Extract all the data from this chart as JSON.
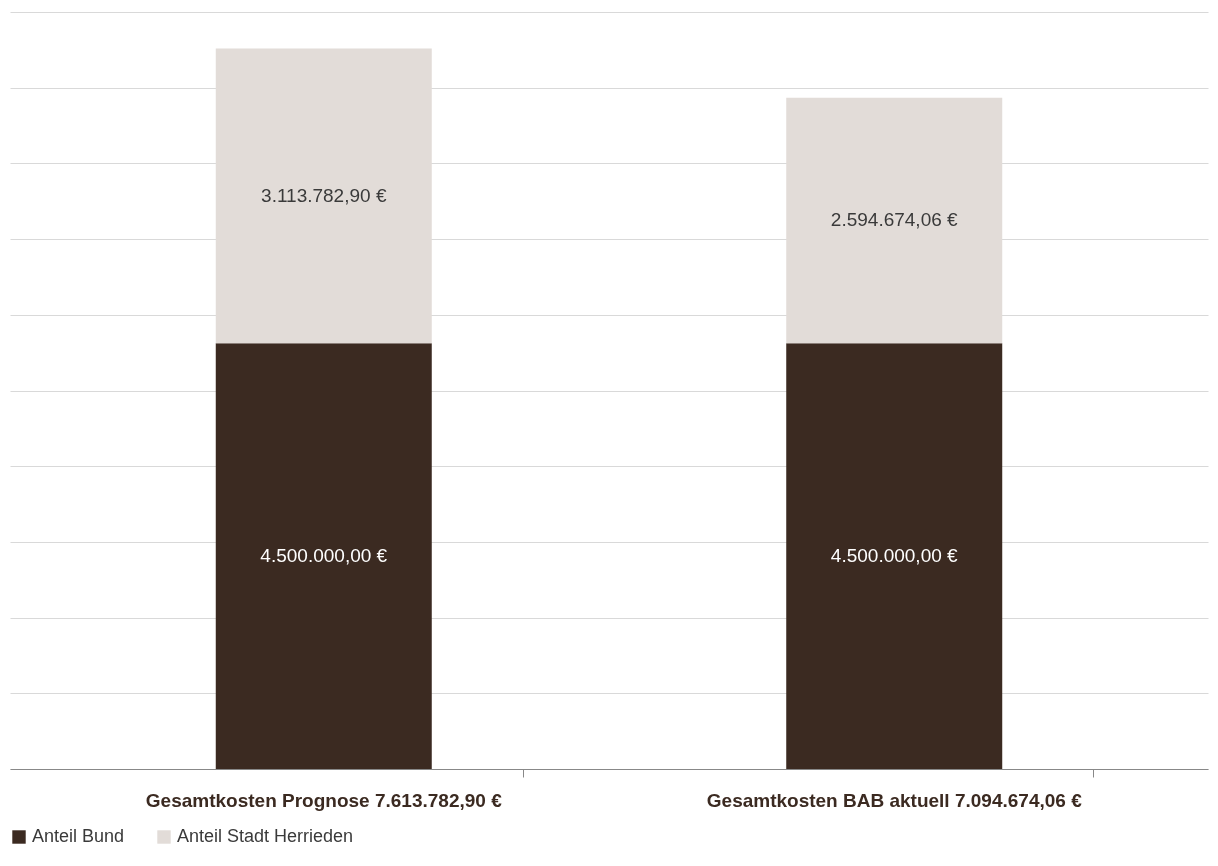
{
  "chart_data": {
    "type": "bar",
    "stacked": true,
    "categories": [
      "Gesamtkosten Prognose 7.613.782,90 €",
      "Gesamtkosten BAB aktuell 7.094.674,06 €"
    ],
    "series": [
      {
        "name": "Anteil Bund",
        "color": "#3b2a21",
        "values": [
          4500000,
          4500000
        ],
        "value_labels": [
          "4.500.000,00 €",
          "4.500.000,00 €"
        ]
      },
      {
        "name": "Anteil Stadt Herrieden",
        "color": "#e2dcd8",
        "values": [
          3113782.9,
          2594674.06
        ],
        "value_labels": [
          "3.113.782,90 €",
          "2.594.674,06 €"
        ]
      }
    ],
    "ylim": [
      0,
      8000000
    ],
    "yticks": [
      {
        "value": 0,
        "label": null
      },
      {
        "value": 800000,
        "label": null
      },
      {
        "value": 1600000,
        "label": null
      },
      {
        "value": 2400000,
        "label": null
      },
      {
        "value": 3200000,
        "label": null
      },
      {
        "value": 4000000,
        "label": null
      },
      {
        "value": 4800000,
        "label": null
      },
      {
        "value": 5600000,
        "label": null
      },
      {
        "value": 6400000,
        "label": null
      },
      {
        "value": 7200000,
        "label": null
      },
      {
        "value": 8000000,
        "label": null
      }
    ],
    "tick_labels": "x",
    "grid": "y",
    "legend": "bottom"
  }
}
